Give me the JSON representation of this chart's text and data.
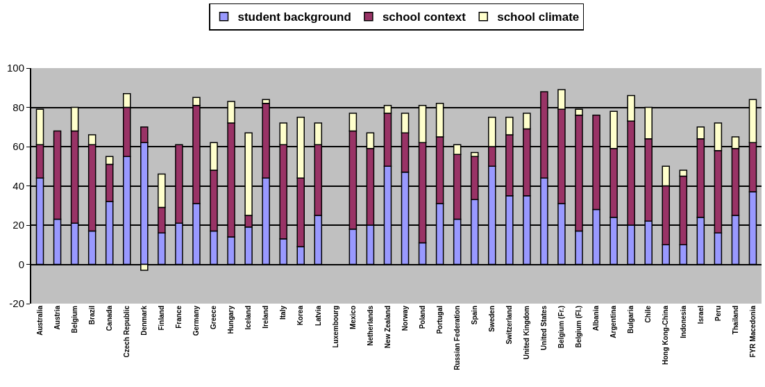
{
  "chart_data": {
    "type": "bar",
    "stacked": true,
    "categories": [
      "Australia",
      "Austria",
      "Belgium",
      "Brazil",
      "Canada",
      "Czech Republic",
      "Denmark",
      "Finland",
      "France",
      "Germany",
      "Greece",
      "Hungary",
      "Iceland",
      "Ireland",
      "Italy",
      "Korea",
      "Latvia",
      "Luxembourg",
      "Mexico",
      "Netherlands",
      "New Zealand",
      "Norway",
      "Poland",
      "Portugal",
      "Russian Federation",
      "Spain",
      "Sweden",
      "Switzerland",
      "United Kingdom",
      "United States",
      "Belgium (Fr.)",
      "Belgium (Fl.)",
      "Albania",
      "Argentina",
      "Bulgaria",
      "Chile",
      "Hong Kong-China",
      "Indonesia",
      "Israel",
      "Peru",
      "Thailand",
      "FYR Macedonia"
    ],
    "series": [
      {
        "name": "student background",
        "color": "#9999ff",
        "values": [
          44,
          23,
          21,
          17,
          32,
          55,
          62,
          16,
          21,
          31,
          17,
          14,
          19,
          44,
          13,
          9,
          25,
          null,
          18,
          20,
          50,
          47,
          11,
          31,
          23,
          33,
          50,
          35,
          35,
          44,
          31,
          17,
          28,
          24,
          20,
          22,
          10,
          10,
          24,
          16,
          25,
          37
        ]
      },
      {
        "name": "school context",
        "color": "#993366",
        "values": [
          17,
          45,
          47,
          44,
          19,
          25,
          8,
          13,
          40,
          50,
          31,
          58,
          6,
          38,
          48,
          35,
          36,
          null,
          50,
          39,
          27,
          20,
          51,
          34,
          33,
          22,
          10,
          31,
          34,
          44,
          48,
          59,
          48,
          35,
          53,
          42,
          30,
          35,
          40,
          42,
          34,
          25
        ]
      },
      {
        "name": "school climate",
        "color": "#ffffcc",
        "values": [
          18,
          null,
          12,
          5,
          4,
          7,
          -3,
          17,
          null,
          4,
          14,
          11,
          42,
          2,
          11,
          31,
          11,
          null,
          9,
          8,
          4,
          10,
          19,
          17,
          5,
          2,
          15,
          9,
          8,
          null,
          10,
          3,
          null,
          19,
          13,
          16,
          10,
          3,
          6,
          14,
          6,
          22
        ]
      }
    ],
    "ylim": [
      -20,
      100
    ],
    "yticks": [
      -20,
      0,
      20,
      40,
      60,
      80,
      100
    ],
    "grid": "y",
    "legend": "top"
  }
}
